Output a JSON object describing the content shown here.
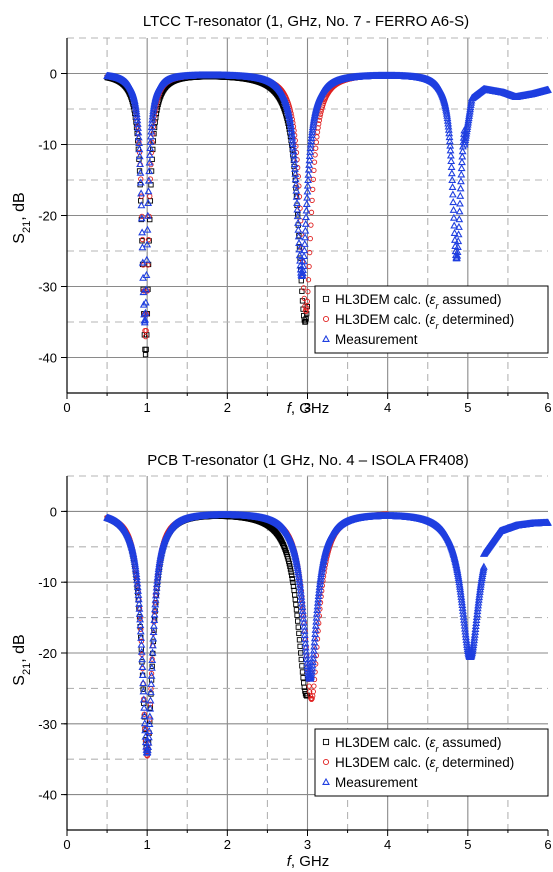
{
  "chart_data": [
    {
      "type": "line",
      "title": "LTCC T-resonator (1, GHz, No. 7 - FERRO A6-S)",
      "xlabel_italic": "f",
      "xlabel_unit": ", GHz",
      "ylabel_base": "S",
      "ylabel_sub": "21",
      "ylabel_unit": ", dB",
      "xlim": [
        0,
        6
      ],
      "ylim": [
        -45,
        5
      ],
      "x_ticks": [
        "0",
        "1",
        "2",
        "3",
        "4",
        "5",
        "6"
      ],
      "y_ticks": [
        "0",
        "-10",
        "-20",
        "-30",
        "-40"
      ],
      "grid": true,
      "legend_placement": "bottom-right",
      "legend": [
        {
          "marker": "square",
          "color": "#000000",
          "pre": "HL3DEM calc. (",
          "eps": "ε",
          "sub": "r",
          "post": " assumed)"
        },
        {
          "marker": "circle",
          "color": "#e02020",
          "pre": "HL3DEM calc. (",
          "eps": "ε",
          "sub": "r",
          "post": " determined)"
        },
        {
          "marker": "triangle",
          "color": "#1f3fe0",
          "text": "Measurement"
        }
      ],
      "series": [
        {
          "marker": "square",
          "color": "#000000",
          "x_range": [
            0.5,
            3.0
          ],
          "dips": [
            {
              "f": 0.98,
              "depth": -39.5,
              "Q": 9
            },
            {
              "f": 2.97,
              "depth": -35.0,
              "Q": 14
            }
          ]
        },
        {
          "marker": "circle",
          "color": "#e02020",
          "x_range": [
            0.5,
            4.0
          ],
          "dips": [
            {
              "f": 0.98,
              "depth": -37.0,
              "Q": 10
            },
            {
              "f": 2.98,
              "depth": -33.5,
              "Q": 18
            }
          ]
        },
        {
          "marker": "triangle",
          "color": "#1f3fe0",
          "x_range": [
            0.5,
            6.0
          ],
          "dips": [
            {
              "f": 0.97,
              "depth": -35.0,
              "Q": 11
            },
            {
              "f": 2.93,
              "depth": -28.5,
              "Q": 18
            },
            {
              "f": 4.86,
              "depth": -26.0,
              "Q": 38
            }
          ],
          "tail": [
            [
              4.96,
              -10.0
            ],
            [
              5.05,
              -3.5
            ],
            [
              5.2,
              -2.2
            ],
            [
              5.45,
              -2.7
            ],
            [
              5.6,
              -3.3
            ],
            [
              5.8,
              -2.9
            ],
            [
              6.0,
              -2.3
            ]
          ]
        }
      ]
    },
    {
      "type": "line",
      "title": "PCB T-resonator (1 GHz, No. 4 – ISOLA FR408)",
      "xlabel_italic": "f",
      "xlabel_unit": ", GHz",
      "ylabel_base": "S",
      "ylabel_sub": "21",
      "ylabel_unit": ", dB",
      "xlim": [
        0,
        6
      ],
      "ylim": [
        -45,
        5
      ],
      "x_ticks": [
        "0",
        "1",
        "2",
        "3",
        "4",
        "5",
        "6"
      ],
      "y_ticks": [
        "0",
        "-10",
        "-20",
        "-30",
        "-40"
      ],
      "grid": true,
      "legend_placement": "bottom-right",
      "legend": [
        {
          "marker": "square",
          "color": "#000000",
          "pre": "HL3DEM calc. (",
          "eps": "ε",
          "sub": "r",
          "post": " assumed)"
        },
        {
          "marker": "circle",
          "color": "#e02020",
          "pre": "HL3DEM calc. (",
          "eps": "ε",
          "sub": "r",
          "post": " determined)"
        },
        {
          "marker": "triangle",
          "color": "#1f3fe0",
          "text": "Measurement"
        }
      ],
      "series": [
        {
          "marker": "square",
          "color": "#000000",
          "x_range": [
            0.5,
            3.0
          ],
          "dips": [
            {
              "f": 1.0,
              "depth": -34.0,
              "Q": 6
            },
            {
              "f": 2.99,
              "depth": -26.0,
              "Q": 11
            }
          ]
        },
        {
          "marker": "circle",
          "color": "#e02020",
          "x_range": [
            0.5,
            4.0
          ],
          "dips": [
            {
              "f": 1.0,
              "depth": -34.5,
              "Q": 6.5
            },
            {
              "f": 3.05,
              "depth": -26.5,
              "Q": 14
            }
          ]
        },
        {
          "marker": "triangle",
          "color": "#1f3fe0",
          "x_range": [
            0.5,
            6.0
          ],
          "dips": [
            {
              "f": 1.0,
              "depth": -34.0,
              "Q": 6.3
            },
            {
              "f": 3.03,
              "depth": -23.5,
              "Q": 14
            },
            {
              "f": 5.03,
              "depth": -20.5,
              "Q": 19
            }
          ],
          "tail": [
            [
              5.2,
              -6.0
            ],
            [
              5.4,
              -2.8
            ],
            [
              5.6,
              -2.0
            ],
            [
              5.8,
              -1.7
            ],
            [
              6.0,
              -1.6
            ]
          ]
        }
      ]
    }
  ]
}
